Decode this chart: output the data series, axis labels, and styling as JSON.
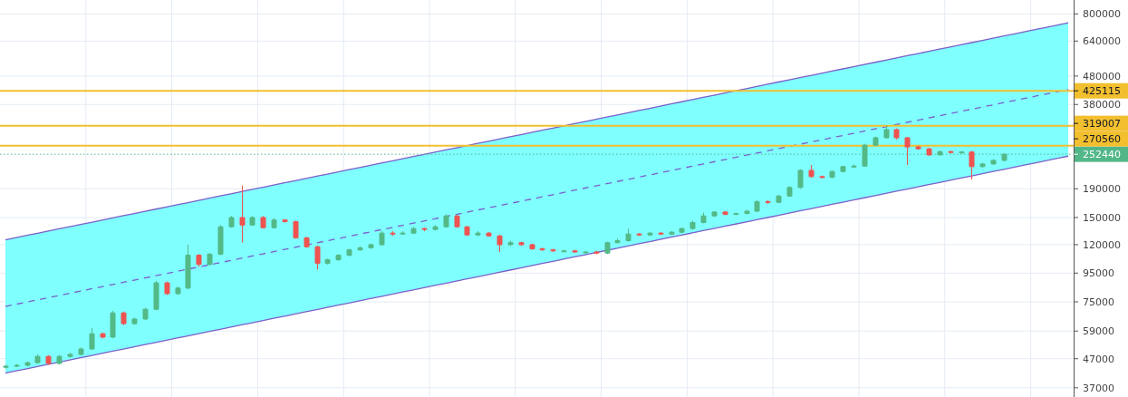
{
  "chart_data": {
    "type": "candlestick",
    "categories": [
      null,
      null,
      null,
      null,
      null,
      null,
      null,
      null,
      null,
      null,
      null,
      null,
      null,
      null,
      null,
      null,
      null,
      null,
      null,
      null,
      null,
      null,
      null,
      null,
      null,
      null,
      null,
      null,
      null,
      null,
      null,
      null,
      null,
      null,
      null,
      null,
      null,
      null,
      null,
      null,
      null,
      null,
      null,
      null,
      null,
      null,
      null,
      null,
      null,
      null,
      null,
      null,
      null,
      null,
      null,
      null,
      null,
      null,
      null,
      null,
      null,
      null,
      null,
      null,
      null,
      null,
      null,
      null,
      null,
      null,
      null,
      null,
      null,
      null,
      null,
      null,
      null,
      null,
      null,
      null,
      null,
      null,
      null,
      null,
      null,
      null,
      null,
      null,
      null,
      null,
      null,
      null,
      null,
      null,
      null,
      null,
      null,
      null,
      null,
      null
    ],
    "ohlc": [
      [
        43800,
        44600,
        43400,
        44200
      ],
      [
        44200,
        45000,
        43900,
        44500
      ],
      [
        44500,
        45900,
        44100,
        45500
      ],
      [
        45500,
        48600,
        45100,
        47900
      ],
      [
        47900,
        48400,
        44700,
        45200
      ],
      [
        45200,
        48400,
        44800,
        47900
      ],
      [
        47900,
        49300,
        47400,
        48700
      ],
      [
        48700,
        51500,
        48200,
        50900
      ],
      [
        50900,
        60400,
        50500,
        57700
      ],
      [
        57700,
        58300,
        55500,
        56100
      ],
      [
        56100,
        69600,
        55600,
        68500
      ],
      [
        68500,
        69300,
        62000,
        62700
      ],
      [
        62700,
        65900,
        62100,
        65100
      ],
      [
        65100,
        71400,
        64500,
        70600
      ],
      [
        70600,
        89000,
        70000,
        87700
      ],
      [
        87700,
        88600,
        79400,
        80200
      ],
      [
        80200,
        85000,
        79400,
        84000
      ],
      [
        84000,
        120000,
        83200,
        110000
      ],
      [
        110000,
        111000,
        100000,
        102000
      ],
      [
        102000,
        112000,
        101000,
        111000
      ],
      [
        111000,
        141000,
        110000,
        139000
      ],
      [
        139000,
        152000,
        138000,
        150000
      ],
      [
        150000,
        195000,
        122000,
        141000
      ],
      [
        141000,
        152000,
        140000,
        150000
      ],
      [
        150000,
        152000,
        137000,
        138000
      ],
      [
        138000,
        149000,
        137000,
        147000
      ],
      [
        147000,
        148000,
        144000,
        145000
      ],
      [
        145000,
        146000,
        126000,
        127000
      ],
      [
        127000,
        128000,
        117000,
        118000
      ],
      [
        118000,
        119000,
        98000,
        103000
      ],
      [
        103000,
        107000,
        102000,
        106000
      ],
      [
        106000,
        111000,
        105000,
        110000
      ],
      [
        110000,
        116000,
        109000,
        115000
      ],
      [
        115000,
        118000,
        114000,
        117000
      ],
      [
        117000,
        121000,
        116000,
        120000
      ],
      [
        120000,
        134000,
        119000,
        132000
      ],
      [
        132000,
        134000,
        129000,
        131000
      ],
      [
        131000,
        134000,
        130000,
        132000
      ],
      [
        132000,
        139000,
        131000,
        137000
      ],
      [
        137000,
        138000,
        134000,
        136000
      ],
      [
        136000,
        141000,
        135000,
        139000
      ],
      [
        139000,
        154000,
        138000,
        152000
      ],
      [
        152000,
        153000,
        138000,
        139000
      ],
      [
        139000,
        140000,
        129000,
        130000
      ],
      [
        130000,
        134000,
        129000,
        132000
      ],
      [
        132000,
        133000,
        128000,
        129000
      ],
      [
        129000,
        130000,
        113000,
        120000
      ],
      [
        120000,
        124000,
        119000,
        122000
      ],
      [
        122000,
        123000,
        119000,
        120000
      ],
      [
        120000,
        121000,
        115000,
        116000
      ],
      [
        116000,
        117000,
        114000,
        115000
      ],
      [
        115000,
        116000,
        113000,
        114000
      ],
      [
        114000,
        115000,
        113000,
        114000
      ],
      [
        114000,
        115000,
        112000,
        113000
      ],
      [
        113000,
        114000,
        112000,
        113000
      ],
      [
        113000,
        114000,
        111000,
        112000
      ],
      [
        112000,
        123000,
        111000,
        122000
      ],
      [
        122000,
        126000,
        121000,
        124000
      ],
      [
        124000,
        137000,
        123000,
        131000
      ],
      [
        131000,
        132000,
        129000,
        130000
      ],
      [
        130000,
        133000,
        129000,
        132000
      ],
      [
        132000,
        133000,
        130000,
        131000
      ],
      [
        131000,
        134000,
        130000,
        133000
      ],
      [
        133000,
        138000,
        132000,
        137000
      ],
      [
        137000,
        146000,
        136000,
        144000
      ],
      [
        144000,
        156000,
        143000,
        152000
      ],
      [
        152000,
        158000,
        151000,
        157000
      ],
      [
        157000,
        158000,
        153000,
        154000
      ],
      [
        154000,
        156000,
        153000,
        155000
      ],
      [
        155000,
        160000,
        154000,
        158000
      ],
      [
        158000,
        173000,
        157000,
        171000
      ],
      [
        171000,
        173000,
        168000,
        170000
      ],
      [
        170000,
        181000,
        169000,
        179000
      ],
      [
        179000,
        194000,
        178000,
        192000
      ],
      [
        192000,
        223000,
        190000,
        221000
      ],
      [
        221000,
        231000,
        208000,
        210000
      ],
      [
        210000,
        212000,
        207000,
        209000
      ],
      [
        209000,
        221000,
        207000,
        219000
      ],
      [
        219000,
        230000,
        218000,
        228000
      ],
      [
        228000,
        232000,
        226000,
        229000
      ],
      [
        229000,
        275000,
        228000,
        272000
      ],
      [
        272000,
        292000,
        270000,
        289000
      ],
      [
        289000,
        320000,
        287000,
        309000
      ],
      [
        309000,
        312000,
        285000,
        289000
      ],
      [
        289000,
        291000,
        231000,
        268000
      ],
      [
        268000,
        271000,
        262000,
        264000
      ],
      [
        264000,
        266000,
        249000,
        251000
      ],
      [
        251000,
        260000,
        250000,
        258000
      ],
      [
        258000,
        260000,
        254000,
        256000
      ],
      [
        256000,
        259000,
        254000,
        257000
      ],
      [
        257000,
        259000,
        205000,
        228000
      ],
      [
        228000,
        235000,
        226000,
        233000
      ],
      [
        233000,
        242000,
        231000,
        240000
      ],
      [
        240000,
        254000,
        238000,
        252440
      ],
      null,
      null,
      null,
      null,
      null,
      null
    ],
    "series": [
      {
        "type": "line",
        "color": "#7b5fc9",
        "line_style": "solid",
        "values": [
          124900,
          127200,
          129500,
          131800,
          134200,
          136700,
          139100,
          141700,
          144200,
          146900,
          149500,
          152300,
          155000,
          157800,
          160700,
          163600,
          166600,
          169600,
          172700,
          175900,
          179100,
          182300,
          185600,
          189000,
          192400,
          195900,
          199500,
          203100,
          206800,
          210600,
          214400,
          218300,
          222300,
          226300,
          230400,
          234600,
          238900,
          243200,
          247700,
          252200,
          256700,
          261400,
          266200,
          271000,
          275900,
          280900,
          286000,
          291200,
          296500,
          301900,
          307400,
          313000,
          318700,
          324500,
          330400,
          336400,
          342500,
          348700,
          355100,
          361500,
          368100,
          374800,
          381600,
          388600,
          395600,
          402800,
          410100,
          417600,
          425200,
          432900,
          440800,
          448800,
          457000,
          465300,
          473700,
          482300,
          491100,
          500000,
          509100,
          518400,
          527800,
          537400,
          547200,
          557100,
          567300,
          577600,
          588100,
          598800,
          609600,
          620700,
          632000,
          643500,
          655200,
          667100,
          679200,
          691600,
          704200,
          717000,
          730000,
          743300
        ]
      },
      {
        "type": "line",
        "color": "#7b5fc9",
        "line_style": "dashed",
        "values": [
          72220,
          73530,
          74870,
          76230,
          77620,
          79030,
          80460,
          81930,
          83420,
          84930,
          86480,
          88050,
          89650,
          91280,
          92940,
          94630,
          96350,
          98100,
          99880,
          101700,
          103500,
          105400,
          107300,
          109300,
          111300,
          113300,
          115400,
          117500,
          119600,
          121800,
          124000,
          126200,
          128500,
          130900,
          133300,
          135700,
          138100,
          140700,
          143200,
          145800,
          148500,
          151200,
          153900,
          156700,
          159600,
          162500,
          165400,
          168400,
          171500,
          174600,
          177800,
          181000,
          184300,
          187700,
          191100,
          194500,
          198100,
          201700,
          205300,
          209100,
          212900,
          216800,
          220700,
          224700,
          228800,
          232900,
          237200,
          241500,
          245900,
          250400,
          254900,
          259500,
          264300,
          269100,
          274000,
          278900,
          284000,
          289200,
          294400,
          299800,
          305200,
          310800,
          316400,
          322200,
          328000,
          334000,
          340100,
          346300,
          352600,
          359000,
          365500,
          372100,
          378900,
          385800,
          392800,
          399900,
          407200,
          414600,
          422200,
          429800
        ],
        "lower": [
          41740,
          42500,
          43280,
          44060,
          44860,
          45680,
          46510,
          47360,
          48220,
          49090,
          49990,
          50890,
          51820,
          52760,
          53720,
          54700,
          55690,
          56700,
          57740,
          58790,
          59850,
          60940,
          62050,
          63180,
          64330,
          65500,
          66690,
          67900,
          69130,
          70390,
          71670,
          72970,
          74300,
          75650,
          77030,
          78430,
          79850,
          81300,
          82780,
          84290,
          85820,
          87380,
          88970,
          90590,
          92230,
          93910,
          95620,
          97360,
          99130,
          100900,
          102800,
          104600,
          106500,
          108500,
          110400,
          112500,
          114500,
          116600,
          118700,
          120900,
          123100,
          125300,
          127600,
          129900,
          132200,
          134700,
          137100,
          139600,
          142100,
          144700,
          147300,
          150000,
          152800,
          155500,
          158400,
          161200,
          164200,
          167200,
          170200,
          173300,
          176400,
          179600,
          182900,
          186200,
          189600,
          193100,
          196600,
          200100,
          203800,
          207500,
          211300,
          215100,
          219000,
          223000,
          227100,
          231200,
          235400,
          239700,
          244000,
          248500
        ],
        "upper": [
          124900,
          127200,
          129500,
          131800,
          134200,
          136700,
          139100,
          141700,
          144200,
          146900,
          149500,
          152300,
          155000,
          157800,
          160700,
          163600,
          166600,
          169600,
          172700,
          175900,
          179100,
          182300,
          185600,
          189000,
          192400,
          195900,
          199500,
          203100,
          206800,
          210600,
          214400,
          218300,
          222300,
          226300,
          230400,
          234600,
          238900,
          243200,
          247700,
          252200,
          256700,
          261400,
          266200,
          271000,
          275900,
          280900,
          286000,
          291200,
          296500,
          301900,
          307400,
          313000,
          318700,
          324500,
          330400,
          336400,
          342500,
          348700,
          355100,
          361500,
          368100,
          374800,
          381600,
          388600,
          395600,
          402800,
          410100,
          417600,
          425200,
          432900,
          440800,
          448800,
          457000,
          465300,
          473700,
          482300,
          491100,
          500000,
          509100,
          518400,
          527800,
          537400,
          547200,
          557100,
          567300,
          577600,
          588100,
          598800,
          609600,
          620700,
          632000,
          643500,
          655200,
          667100,
          679200,
          691600,
          704200,
          717000,
          730000,
          743300
        ]
      },
      {
        "type": "line",
        "color": "#7b5fc9",
        "line_style": "solid",
        "values": [
          41740,
          42500,
          43280,
          44060,
          44860,
          45680,
          46510,
          47360,
          48220,
          49090,
          49990,
          50890,
          51820,
          52760,
          53720,
          54700,
          55690,
          56700,
          57740,
          58790,
          59850,
          60940,
          62050,
          63180,
          64330,
          65500,
          66690,
          67900,
          69130,
          70390,
          71670,
          72970,
          74300,
          75650,
          77030,
          78430,
          79850,
          81300,
          82780,
          84290,
          85820,
          87380,
          88970,
          90590,
          92230,
          93910,
          95620,
          97360,
          99130,
          100900,
          102800,
          104600,
          106500,
          108500,
          110400,
          112500,
          114500,
          116600,
          118700,
          120900,
          123100,
          125300,
          127600,
          129900,
          132200,
          134700,
          137100,
          139600,
          142100,
          144700,
          147300,
          150000,
          152800,
          155500,
          158400,
          161200,
          164200,
          167200,
          170200,
          173300,
          176400,
          179600,
          182900,
          186200,
          189600,
          193100,
          196600,
          200100,
          203800,
          207500,
          211300,
          215100,
          219000,
          223000,
          227100,
          231200,
          235400,
          239700,
          244000,
          248500
        ]
      }
    ],
    "ylim": [
      34300,
      897000
    ],
    "yticks": [
      37000,
      47000,
      59000,
      75000,
      95000,
      120000,
      150000,
      190000,
      380000,
      480000,
      640000,
      800000
    ],
    "log": true,
    "grid": true,
    "tick_labels": "y",
    "ref_lines": [
      {
        "axis": "y",
        "value": 425115,
        "label": "425115",
        "color": "#f2bf2f"
      },
      {
        "axis": "y",
        "value": 319007,
        "label": "319007",
        "color": "#f2bf2f"
      },
      {
        "axis": "y",
        "value": 270560,
        "label": "270560",
        "color": "#f2bf2f"
      },
      {
        "axis": "y",
        "value": 252440,
        "label": "252440",
        "color": "#52b788",
        "line_style": "dotted"
      }
    ]
  }
}
